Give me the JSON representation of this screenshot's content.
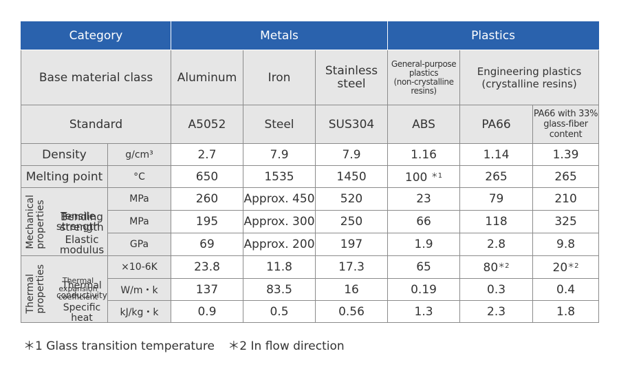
{
  "header": {
    "category": "Category",
    "metals": "Metals",
    "plastics": "Plastics"
  },
  "base_row": {
    "label": "Base material class",
    "aluminum": "Aluminum",
    "iron": "Iron",
    "stainless_line1": "Stainless",
    "stainless_line2": "steel",
    "gp_line1": "General-purpose",
    "gp_line2": "plastics",
    "gp_line3": "(non-crystalline",
    "gp_line4": "resins)",
    "eng_line1": "Engineering plastics",
    "eng_line2": "(crystalline resins)"
  },
  "standard_row": {
    "label": "Standard",
    "values": [
      "A5052",
      "Steel",
      "SUS304",
      "ABS",
      "PA66"
    ],
    "pa66gf_line1": "PA66 with 33%",
    "pa66gf_line2": "glass-fiber",
    "pa66gf_line3": "content"
  },
  "density": {
    "label": "Density",
    "unit": "g/cm³",
    "values": [
      "2.7",
      "7.9",
      "7.9",
      "1.16",
      "1.14",
      "1.39"
    ]
  },
  "melting": {
    "label": "Melting point",
    "unit": "°C",
    "values": [
      "650",
      "1535",
      "1450",
      "100",
      "265",
      "265"
    ],
    "abs_note": "＊1"
  },
  "mechanical": {
    "group_line1": "Mechanical",
    "group_line2": "properties",
    "tensile": {
      "label_line1": "Tensile",
      "label_line2": "strength",
      "unit": "MPa",
      "values": [
        "260",
        "Approx. 450",
        "520",
        "23",
        "79",
        "210"
      ]
    },
    "bending": {
      "label_line1": "Bending",
      "label_line2": "strength",
      "unit": "MPa",
      "values": [
        "195",
        "Approx. 300",
        "250",
        "66",
        "118",
        "325"
      ]
    },
    "elastic": {
      "label_line1": "Elastic",
      "label_line2": "modulus",
      "unit": "GPa",
      "values": [
        "69",
        "Approx. 200",
        "197",
        "1.9",
        "2.8",
        "9.8"
      ]
    }
  },
  "thermal": {
    "group_line1": "Thermal",
    "group_line2": "properties",
    "expansion": {
      "label_line1": "Thermal",
      "label_line2": "expansion",
      "label_line3": "coefficient",
      "unit": "×10-6K",
      "values": [
        "23.8",
        "11.8",
        "17.3",
        "65",
        "80",
        "20"
      ],
      "pa66_note": "＊2",
      "pa66gf_note": "＊2"
    },
    "conductivity": {
      "label_line1": "Thermal",
      "label_line2": "conductivity",
      "unit": "W/m・k",
      "values": [
        "137",
        "83.5",
        "16",
        "0.19",
        "0.3",
        "0.4"
      ]
    },
    "specific_heat": {
      "label_line1": "Specific",
      "label_line2": "heat",
      "unit": "kJ/kg・k",
      "values": [
        "0.9",
        "0.5",
        "0.56",
        "1.3",
        "2.3",
        "1.8"
      ]
    }
  },
  "footnotes": {
    "note1": "＊1  Glass transition temperature",
    "note2": "＊2  In flow direction"
  },
  "colors": {
    "header_bg": "#2a62ad",
    "header_text": "#ffffff",
    "label_bg": "#e6e6e6",
    "border": "#8a8a8a"
  }
}
